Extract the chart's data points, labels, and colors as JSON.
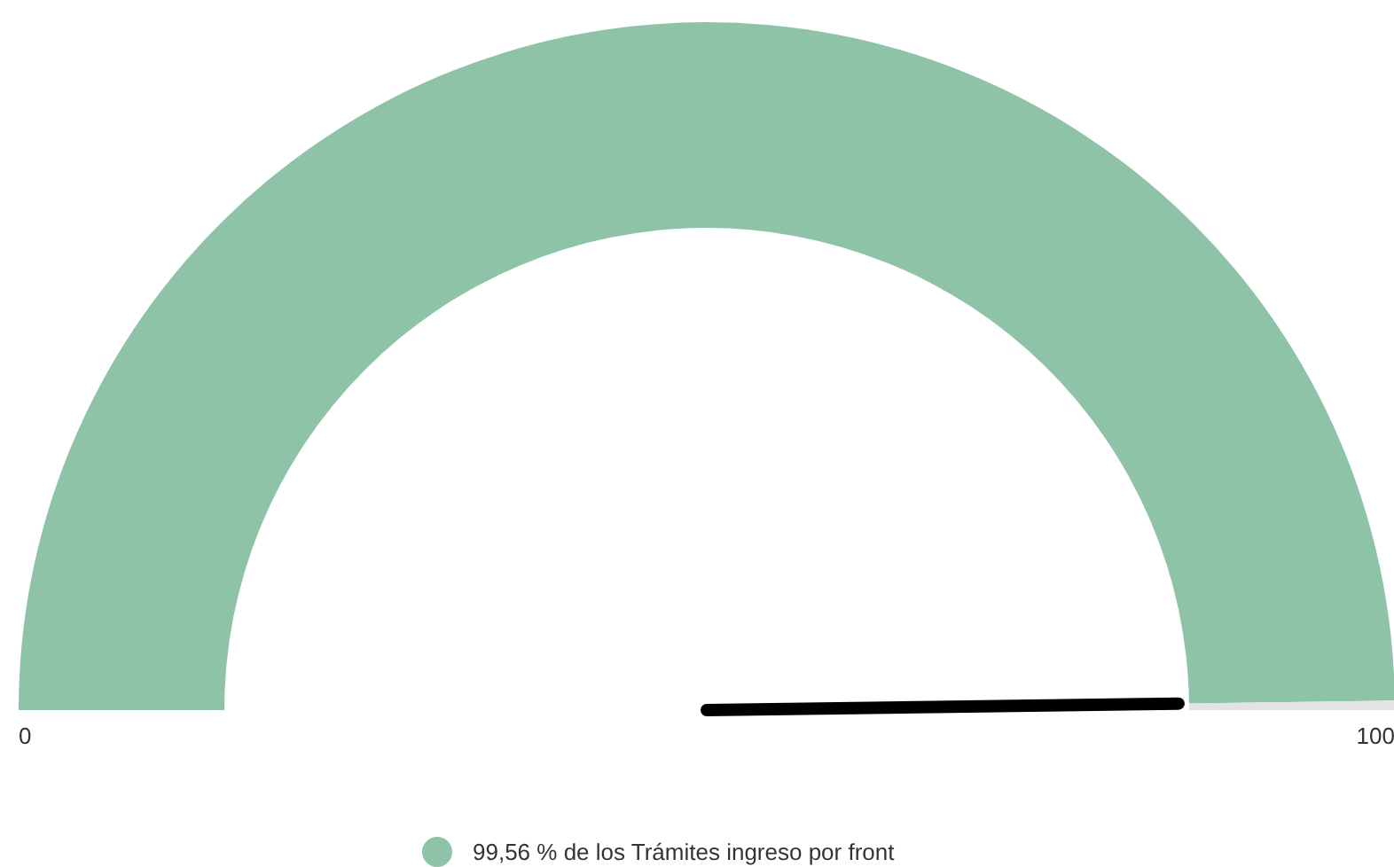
{
  "chart_data": {
    "type": "donut",
    "categories": [
      "99,56 % de los Trámites ingreso por front",
      null
    ],
    "values": [
      99.56,
      0.44
    ],
    "colors": [
      "#8fc3a7",
      "#e3e3e3"
    ],
    "needle": "99,56 % de los Trámites ingreso por front",
    "annotations": [
      "0",
      "100"
    ],
    "legend": "bottom"
  }
}
